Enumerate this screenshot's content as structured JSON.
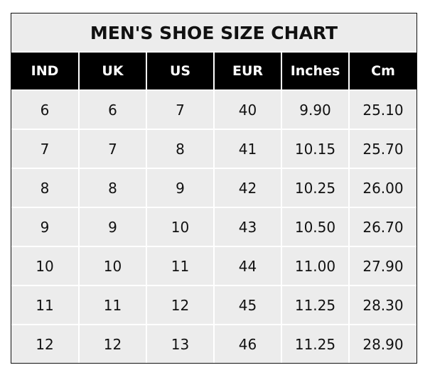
{
  "chart_data": {
    "type": "table",
    "title": "MEN'S SHOE SIZE CHART",
    "columns": [
      "IND",
      "UK",
      "US",
      "EUR",
      "Inches",
      "Cm"
    ],
    "rows": [
      [
        "6",
        "6",
        "7",
        "40",
        "9.90",
        "25.10"
      ],
      [
        "7",
        "7",
        "8",
        "41",
        "10.15",
        "25.70"
      ],
      [
        "8",
        "8",
        "9",
        "42",
        "10.25",
        "26.00"
      ],
      [
        "9",
        "9",
        "10",
        "43",
        "10.50",
        "26.70"
      ],
      [
        "10",
        "10",
        "11",
        "44",
        "11.00",
        "27.90"
      ],
      [
        "11",
        "11",
        "12",
        "45",
        "11.25",
        "28.30"
      ],
      [
        "12",
        "12",
        "13",
        "46",
        "11.25",
        "28.90"
      ]
    ],
    "colors": {
      "header_bg": "#000000",
      "header_text": "#ffffff",
      "body_bg": "#ececec",
      "grid": "#ffffff"
    }
  }
}
